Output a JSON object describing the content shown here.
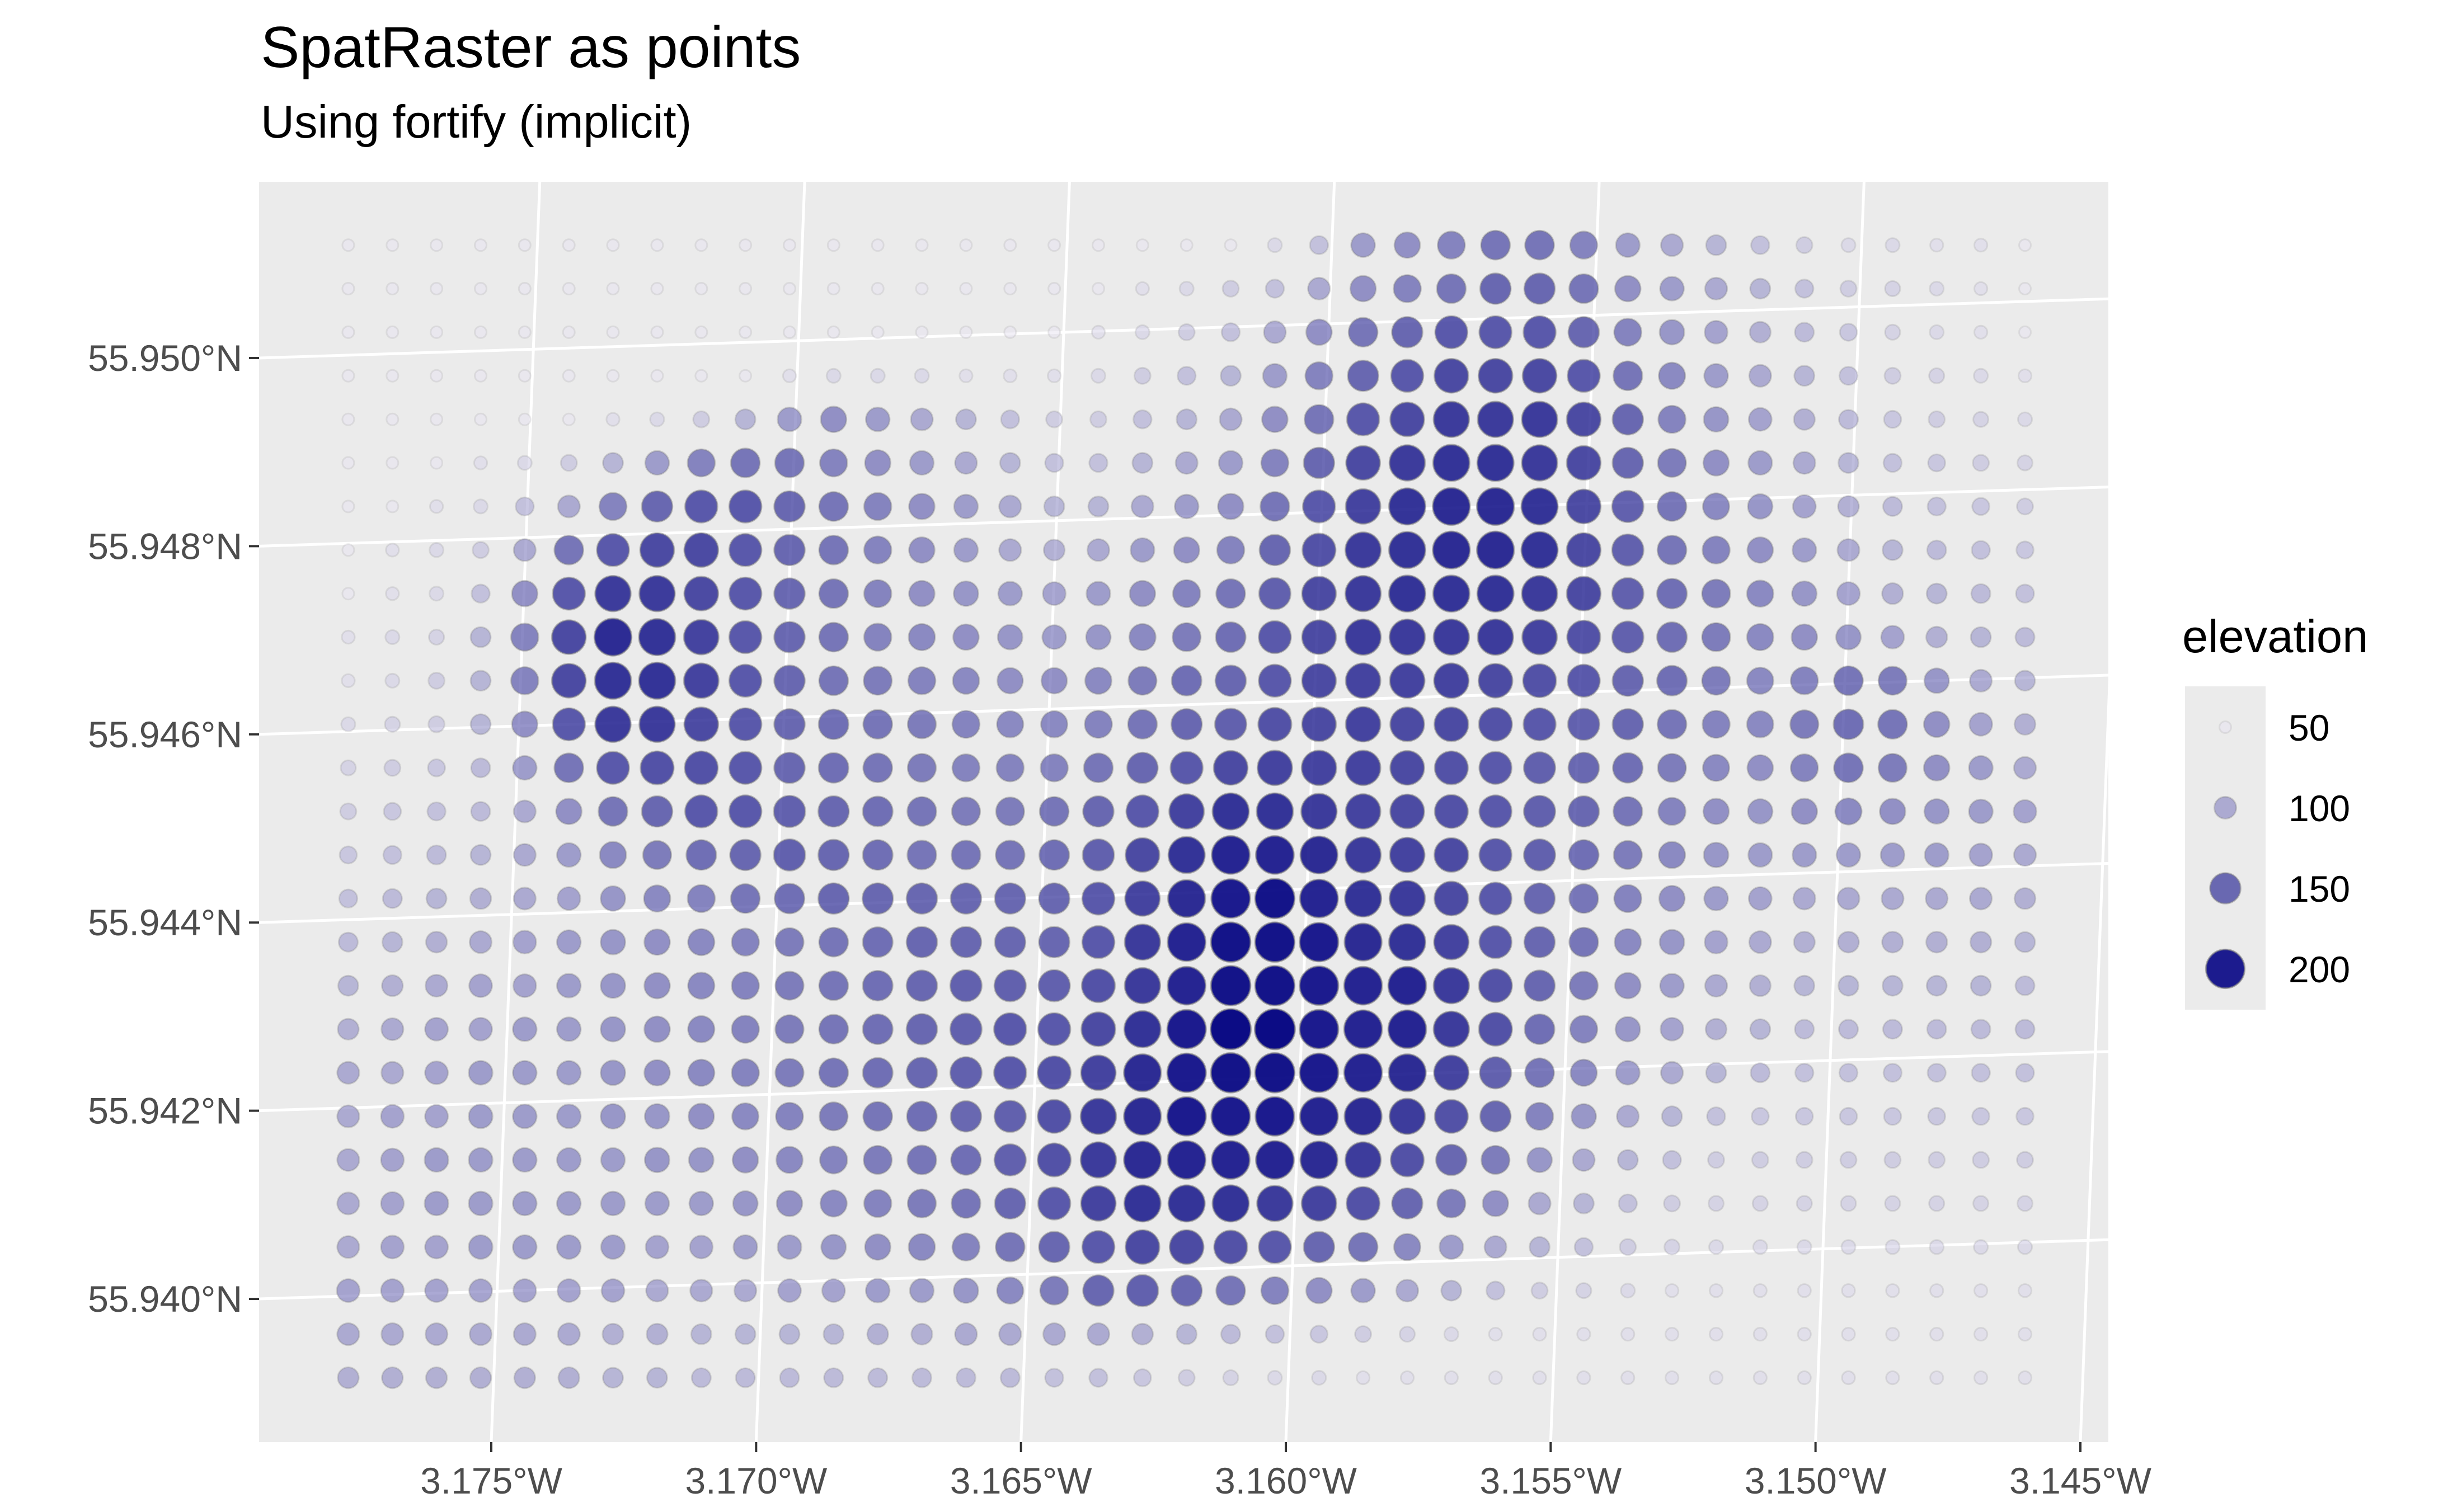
{
  "chart_data": {
    "type": "scatter",
    "title": "SpatRaster as points",
    "subtitle": "Using fortify (implicit)",
    "x_ticks": [
      "3.175°W",
      "3.170°W",
      "3.165°W",
      "3.160°W",
      "3.155°W",
      "3.150°W",
      "3.145°W"
    ],
    "y_ticks": [
      "55.950°N",
      "55.948°N",
      "55.946°N",
      "55.944°N",
      "55.942°N",
      "55.940°N"
    ],
    "xlim": [
      -3.1793,
      -3.1445
    ],
    "ylim": [
      55.9385,
      55.952
    ],
    "grid": true,
    "legend": {
      "title": "elevation",
      "position": "right",
      "entries": [
        {
          "label": "50",
          "value": 50
        },
        {
          "label": "100",
          "value": 100
        },
        {
          "label": "150",
          "value": 150
        },
        {
          "label": "200",
          "value": 200
        }
      ]
    },
    "grid_shape": {
      "cols": 39,
      "rows": 27
    },
    "cell": {
      "x0": -3.1777,
      "dx": 0.000833,
      "y0": 55.9512,
      "dy": -0.000463
    },
    "elevation_rows": [
      [
        50,
        50,
        50,
        50,
        50,
        50,
        50,
        50,
        50,
        50,
        50,
        50,
        50,
        50,
        50,
        50,
        50,
        50,
        50,
        50,
        50,
        60,
        80,
        110,
        120,
        130,
        140,
        140,
        130,
        110,
        100,
        90,
        80,
        70,
        60,
        60,
        55,
        55,
        50
      ],
      [
        50,
        50,
        50,
        50,
        50,
        50,
        50,
        50,
        50,
        50,
        50,
        50,
        50,
        50,
        50,
        50,
        50,
        50,
        55,
        60,
        70,
        80,
        100,
        120,
        130,
        140,
        150,
        150,
        140,
        120,
        110,
        100,
        90,
        80,
        70,
        65,
        60,
        55,
        50
      ],
      [
        50,
        50,
        50,
        50,
        50,
        50,
        50,
        50,
        50,
        50,
        50,
        50,
        50,
        50,
        50,
        50,
        50,
        55,
        60,
        70,
        80,
        100,
        120,
        140,
        150,
        160,
        160,
        160,
        150,
        130,
        115,
        105,
        95,
        85,
        75,
        65,
        60,
        55,
        50
      ],
      [
        50,
        50,
        50,
        50,
        50,
        50,
        50,
        50,
        50,
        50,
        55,
        60,
        60,
        60,
        55,
        55,
        55,
        60,
        70,
        80,
        90,
        110,
        130,
        150,
        160,
        170,
        170,
        170,
        160,
        140,
        125,
        110,
        100,
        90,
        80,
        70,
        65,
        60,
        55
      ],
      [
        50,
        50,
        50,
        50,
        50,
        50,
        55,
        60,
        70,
        90,
        110,
        120,
        110,
        100,
        90,
        80,
        70,
        70,
        80,
        90,
        100,
        120,
        140,
        160,
        170,
        180,
        180,
        180,
        170,
        150,
        130,
        115,
        105,
        95,
        85,
        75,
        70,
        65,
        60
      ],
      [
        50,
        50,
        50,
        55,
        60,
        70,
        90,
        110,
        130,
        140,
        140,
        130,
        120,
        110,
        100,
        90,
        80,
        80,
        90,
        100,
        110,
        130,
        150,
        170,
        180,
        185,
        185,
        180,
        170,
        150,
        135,
        120,
        110,
        100,
        90,
        80,
        75,
        70,
        65
      ],
      [
        50,
        50,
        55,
        60,
        80,
        100,
        130,
        150,
        160,
        160,
        150,
        140,
        130,
        120,
        110,
        100,
        90,
        90,
        100,
        110,
        120,
        140,
        160,
        175,
        185,
        190,
        190,
        185,
        170,
        155,
        140,
        125,
        115,
        105,
        95,
        85,
        80,
        75,
        70
      ],
      [
        50,
        55,
        60,
        70,
        100,
        140,
        160,
        170,
        170,
        160,
        150,
        140,
        130,
        120,
        110,
        100,
        95,
        100,
        110,
        120,
        130,
        150,
        165,
        180,
        185,
        190,
        190,
        185,
        170,
        155,
        140,
        130,
        120,
        110,
        100,
        90,
        85,
        80,
        75
      ],
      [
        50,
        55,
        60,
        80,
        120,
        160,
        180,
        180,
        170,
        160,
        150,
        140,
        130,
        120,
        115,
        110,
        105,
        110,
        120,
        130,
        140,
        155,
        170,
        180,
        185,
        185,
        185,
        180,
        170,
        155,
        145,
        135,
        125,
        115,
        105,
        95,
        90,
        85,
        80
      ],
      [
        55,
        60,
        65,
        90,
        130,
        170,
        190,
        185,
        175,
        160,
        150,
        140,
        130,
        125,
        120,
        115,
        110,
        115,
        125,
        135,
        145,
        160,
        170,
        180,
        180,
        180,
        180,
        175,
        165,
        155,
        145,
        135,
        125,
        120,
        115,
        105,
        95,
        90,
        85
      ],
      [
        55,
        60,
        70,
        90,
        130,
        170,
        185,
        185,
        175,
        160,
        150,
        140,
        135,
        130,
        125,
        120,
        120,
        125,
        135,
        145,
        150,
        160,
        170,
        175,
        175,
        175,
        170,
        165,
        160,
        150,
        145,
        135,
        125,
        130,
        140,
        135,
        115,
        100,
        90
      ],
      [
        60,
        65,
        70,
        90,
        120,
        160,
        180,
        180,
        170,
        160,
        150,
        145,
        140,
        135,
        130,
        125,
        125,
        130,
        140,
        150,
        155,
        165,
        170,
        175,
        170,
        170,
        165,
        160,
        155,
        150,
        140,
        130,
        125,
        135,
        145,
        140,
        120,
        105,
        95
      ],
      [
        65,
        70,
        75,
        85,
        110,
        140,
        160,
        165,
        165,
        160,
        150,
        145,
        140,
        135,
        130,
        130,
        130,
        140,
        150,
        160,
        170,
        175,
        175,
        175,
        170,
        165,
        160,
        155,
        150,
        145,
        135,
        125,
        120,
        130,
        140,
        135,
        120,
        110,
        100
      ],
      [
        70,
        75,
        80,
        85,
        100,
        120,
        140,
        150,
        160,
        160,
        155,
        150,
        145,
        140,
        135,
        135,
        140,
        150,
        160,
        175,
        185,
        185,
        180,
        175,
        170,
        165,
        160,
        155,
        150,
        140,
        130,
        120,
        115,
        120,
        125,
        120,
        115,
        110,
        105
      ],
      [
        75,
        80,
        85,
        90,
        100,
        110,
        125,
        135,
        145,
        150,
        155,
        150,
        145,
        140,
        140,
        140,
        145,
        155,
        170,
        185,
        195,
        195,
        190,
        180,
        175,
        170,
        160,
        155,
        145,
        135,
        125,
        115,
        110,
        110,
        110,
        110,
        110,
        105,
        100
      ],
      [
        80,
        85,
        90,
        95,
        100,
        105,
        115,
        125,
        130,
        140,
        145,
        150,
        150,
        150,
        150,
        150,
        150,
        160,
        175,
        190,
        200,
        205,
        195,
        185,
        180,
        170,
        160,
        150,
        140,
        130,
        120,
        110,
        105,
        100,
        100,
        100,
        100,
        100,
        95
      ],
      [
        85,
        90,
        95,
        100,
        105,
        110,
        115,
        120,
        125,
        130,
        135,
        140,
        145,
        150,
        150,
        150,
        150,
        160,
        180,
        195,
        205,
        205,
        200,
        190,
        185,
        175,
        160,
        150,
        140,
        125,
        115,
        105,
        100,
        95,
        95,
        95,
        95,
        95,
        90
      ],
      [
        90,
        95,
        100,
        105,
        105,
        110,
        115,
        120,
        125,
        130,
        135,
        140,
        145,
        150,
        155,
        155,
        155,
        165,
        180,
        195,
        205,
        205,
        200,
        195,
        195,
        180,
        165,
        150,
        135,
        120,
        110,
        100,
        95,
        90,
        90,
        90,
        90,
        90,
        85
      ],
      [
        95,
        100,
        105,
        105,
        110,
        110,
        115,
        120,
        125,
        130,
        135,
        140,
        145,
        150,
        155,
        160,
        160,
        170,
        185,
        200,
        210,
        210,
        200,
        195,
        195,
        180,
        165,
        145,
        130,
        115,
        105,
        95,
        90,
        85,
        85,
        85,
        85,
        85,
        85
      ],
      [
        100,
        100,
        105,
        110,
        110,
        110,
        115,
        120,
        125,
        130,
        135,
        140,
        145,
        150,
        155,
        160,
        165,
        175,
        190,
        200,
        205,
        205,
        200,
        195,
        190,
        175,
        155,
        140,
        125,
        110,
        100,
        90,
        85,
        80,
        80,
        80,
        80,
        80,
        80
      ],
      [
        100,
        105,
        105,
        110,
        110,
        110,
        115,
        115,
        120,
        125,
        130,
        135,
        140,
        145,
        150,
        155,
        165,
        180,
        190,
        200,
        200,
        200,
        195,
        190,
        180,
        165,
        150,
        130,
        115,
        100,
        90,
        80,
        75,
        75,
        75,
        75,
        75,
        75,
        75
      ],
      [
        100,
        105,
        110,
        110,
        110,
        110,
        110,
        115,
        115,
        120,
        125,
        130,
        135,
        140,
        145,
        155,
        165,
        180,
        190,
        195,
        195,
        195,
        190,
        180,
        165,
        150,
        135,
        115,
        100,
        90,
        80,
        70,
        70,
        70,
        70,
        70,
        70,
        70,
        70
      ],
      [
        100,
        105,
        110,
        110,
        110,
        110,
        110,
        110,
        110,
        115,
        120,
        125,
        130,
        135,
        140,
        150,
        160,
        175,
        185,
        185,
        185,
        180,
        175,
        165,
        150,
        135,
        120,
        100,
        90,
        80,
        70,
        65,
        65,
        65,
        65,
        65,
        65,
        65,
        65
      ],
      [
        100,
        105,
        105,
        110,
        110,
        110,
        110,
        105,
        105,
        110,
        110,
        115,
        120,
        125,
        130,
        140,
        150,
        160,
        170,
        170,
        165,
        160,
        150,
        140,
        125,
        110,
        100,
        90,
        80,
        70,
        65,
        60,
        60,
        60,
        60,
        60,
        60,
        60,
        60
      ],
      [
        105,
        105,
        105,
        105,
        105,
        105,
        105,
        100,
        100,
        100,
        105,
        105,
        110,
        110,
        115,
        125,
        135,
        150,
        155,
        150,
        140,
        130,
        120,
        110,
        100,
        90,
        80,
        70,
        65,
        60,
        55,
        55,
        55,
        55,
        55,
        55,
        55,
        55,
        55
      ],
      [
        100,
        100,
        100,
        100,
        100,
        100,
        95,
        95,
        90,
        90,
        90,
        90,
        95,
        95,
        100,
        100,
        100,
        100,
        95,
        90,
        85,
        80,
        75,
        70,
        65,
        60,
        55,
        55,
        55,
        55,
        55,
        55,
        55,
        55,
        55,
        55,
        55,
        55,
        55
      ],
      [
        95,
        95,
        95,
        95,
        95,
        95,
        90,
        90,
        85,
        85,
        85,
        85,
        85,
        85,
        85,
        85,
        80,
        80,
        75,
        70,
        65,
        60,
        60,
        55,
        55,
        55,
        55,
        55,
        55,
        55,
        55,
        55,
        55,
        55,
        55,
        55,
        55,
        55,
        55
      ]
    ]
  }
}
